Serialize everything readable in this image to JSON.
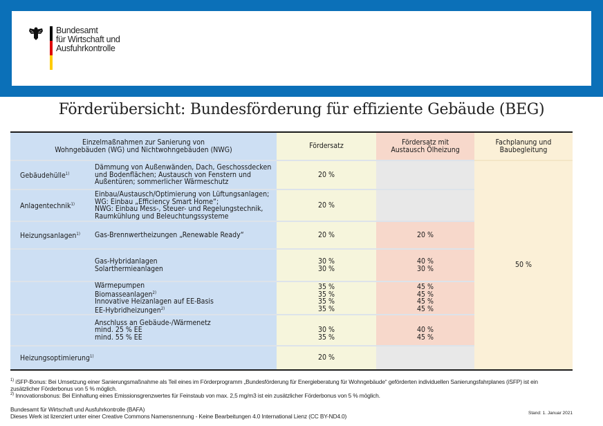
{
  "header": {
    "org_lines": [
      "Bundesamt",
      "für Wirtschaft und",
      "Ausfuhrkontrolle"
    ],
    "flag_colors": [
      "#000000",
      "#dd0000",
      "#ffcc00"
    ],
    "brand_color": "#0b70b8",
    "logo_icon": "federal-eagle-icon"
  },
  "title": "Förderübersicht: Bundesförderung für effiziente Gebäude (BEG)",
  "table": {
    "headers": {
      "measures_line1": "Einzelmaßnahmen zur Sanierung von",
      "measures_line2": "Wohngebäuden (WG) und Nichtwohngebäuden (NWG)",
      "rate": "Fördersatz",
      "oil_line1": "Fördersatz mit",
      "oil_line2": "Austausch Ölheizung",
      "planning_line1": "Fachplanung und",
      "planning_line2": "Baubegleitung"
    },
    "planning_value": "50 %",
    "rows": [
      {
        "category": "Gebäudehülle",
        "sup": "1)",
        "items": [
          "Dämmung von Außenwänden, Dach, Geschossdecken",
          "und Bodenflächen; Austausch von Fenstern und",
          "Außentüren; sommerlicher Wärmeschutz"
        ],
        "rate": [
          "20 %"
        ],
        "oil": []
      },
      {
        "category": "Anlagentechnik",
        "sup": "1)",
        "items": [
          "Einbau/Austausch/Optimierung von Lüftungsanlagen;",
          "WG: Einbau „Efficiency Smart Home“;",
          "NWG: Einbau Mess-, Steuer- und Regelungstechnik,",
          "Raumkühlung und Beleuchtungssysteme"
        ],
        "rate": [
          "20 %"
        ],
        "oil": []
      },
      {
        "category": "Heizungsanlagen",
        "sup": "1)",
        "items": [
          "Gas-Brennwertheizungen „Renewable Ready“"
        ],
        "rate": [
          "20 %"
        ],
        "oil": [
          "20 %"
        ]
      },
      {
        "category": "",
        "sup": "",
        "items": [
          "Gas-Hybridanlagen",
          "Solarthermieanlagen"
        ],
        "rate": [
          "30 %",
          "30 %"
        ],
        "oil": [
          "40 %",
          "30 %"
        ]
      },
      {
        "category": "",
        "sup": "",
        "items": [
          "Wärmepumpen",
          "Biomasseanlagen",
          "Innovative Heizanlagen auf EE-Basis",
          "EE-Hybridheizungen"
        ],
        "item_sups": [
          "",
          "2)",
          "",
          "2)"
        ],
        "rate": [
          "35 %",
          "35 %",
          "35 %",
          "35 %"
        ],
        "oil": [
          "45 %",
          "45 %",
          "45 %",
          "45 %"
        ]
      },
      {
        "category": "",
        "sup": "",
        "items": [
          "Anschluss an Gebäude-/Wärmenetz",
          "mind. 25 % EE",
          "mind. 55 % EE"
        ],
        "rate": [
          "",
          "30 %",
          "35 %"
        ],
        "oil": [
          "",
          "40 %",
          "45 %"
        ]
      },
      {
        "category": "Heizungsoptimierung",
        "sup": "1)",
        "items": [],
        "rate": [
          "20 %"
        ],
        "oil": []
      }
    ],
    "colors": {
      "measures": "#cddff3",
      "rate": "#f6f5dc",
      "oil": "#f7d8cb",
      "not_applicable": "#e8e8e8",
      "planning": "#fbf0d7"
    }
  },
  "footnotes": {
    "note1_sup": "1)",
    "note1_line1": "iSFP-Bonus: Bei Umsetzung einer Sanierungsmaßnahme als Teil eines im Förderprogramm „Bundesförderung für Energieberatung für Wohngebäude“ geförderten individuellen Sanierungsfahrplanes (iSFP) ist ein",
    "note1_line2": "zusätzlicher Förderbonus von 5 % möglich.",
    "note2_sup": "2)",
    "note2": "Innovationsbonus: Bei Einhaltung eines Emissionsgrenzwertes für Feinstaub von max. 2,5 mg/m3 ist ein zusätzlicher Förderbonus von 5 % möglich."
  },
  "footer": {
    "publisher": "Bundesamt für Wirtschaft und Ausfuhrkontrolle (BAFA)",
    "license": "Dieses Werk ist lizenziert unter einer Creative Commons Namensnennung - Keine Bearbeitungen 4.0 International Lienz (CC BY-ND4.0)",
    "stand": "Stand: 1. Januar 2021"
  }
}
